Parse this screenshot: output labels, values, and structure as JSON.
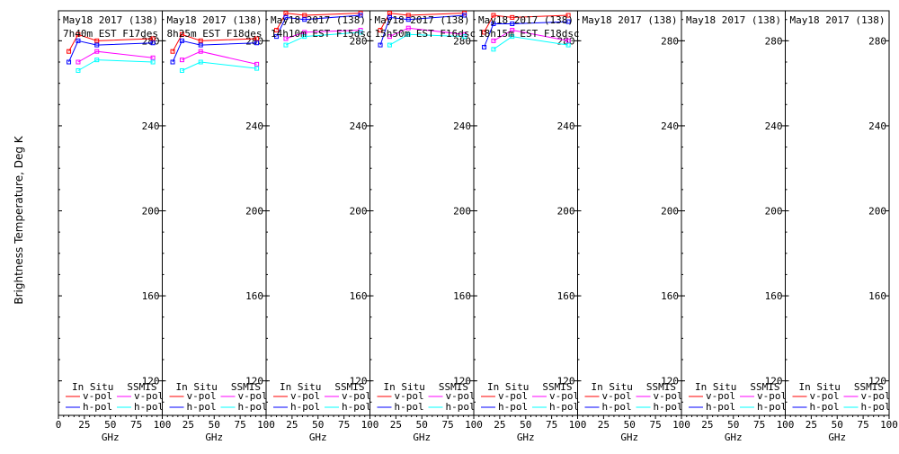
{
  "colors": {
    "insitu_v": "#ff0000",
    "insitu_h": "#0000ff",
    "ssmis_v": "#ff00ff",
    "ssmis_h": "#00ffff",
    "frame": "#000000",
    "background": "#ffffff"
  },
  "ylabel": "Brightness Temperature, Deg K",
  "xlabel": "GHz",
  "legend": {
    "insitu_title": "In Situ",
    "ssmis_title": "SSMIS",
    "vpol": "v-pol",
    "hpol": "h-pol"
  },
  "chart_data": {
    "type": "line",
    "title": "",
    "xlabel": "GHz",
    "ylabel": "Brightness Temperature, Deg K",
    "xlim": [
      0,
      100
    ],
    "ylim": [
      108,
      292
    ],
    "yticks": [
      120,
      160,
      200,
      240,
      280
    ],
    "xticks": [
      0,
      25,
      50,
      75,
      100
    ],
    "xtick_labels": [
      "0",
      "25",
      "50",
      "75",
      "100"
    ],
    "grid": false,
    "panels": [
      {
        "title": "May18 2017 (138)",
        "subtitle": "7h40m EST F17des",
        "series": [
          {
            "name": "In Situ v-pol",
            "x": [
              10,
              19,
              37,
              91
            ],
            "y": [
              275,
              283,
              280,
              281
            ]
          },
          {
            "name": "In Situ h-pol",
            "x": [
              10,
              19,
              37,
              91
            ],
            "y": [
              270,
              280,
              278,
              279
            ]
          },
          {
            "name": "SSMIS v-pol",
            "x": [
              19,
              37,
              91
            ],
            "y": [
              270,
              275,
              272
            ]
          },
          {
            "name": "SSMIS h-pol",
            "x": [
              19,
              37,
              91
            ],
            "y": [
              266,
              271,
              270
            ]
          }
        ]
      },
      {
        "title": "May18 2017 (138)",
        "subtitle": "8h25m EST F18des",
        "series": [
          {
            "name": "In Situ v-pol",
            "x": [
              10,
              19,
              37,
              91
            ],
            "y": [
              275,
              283,
              280,
              281
            ]
          },
          {
            "name": "In Situ h-pol",
            "x": [
              10,
              19,
              37,
              91
            ],
            "y": [
              270,
              280,
              278,
              279
            ]
          },
          {
            "name": "SSMIS v-pol",
            "x": [
              19,
              37,
              91
            ],
            "y": [
              271,
              275,
              269
            ]
          },
          {
            "name": "SSMIS h-pol",
            "x": [
              19,
              37,
              91
            ],
            "y": [
              266,
              270,
              267
            ]
          }
        ]
      },
      {
        "title": "May18 2017 (138)",
        "subtitle": "14h10m EST F15dsc",
        "series": [
          {
            "name": "In Situ v-pol",
            "x": [
              10,
              19,
              37,
              91
            ],
            "y": [
              285,
              293,
              292,
              293
            ]
          },
          {
            "name": "In Situ h-pol",
            "x": [
              10,
              19,
              37,
              91
            ],
            "y": [
              282,
              291,
              290,
              292
            ]
          },
          {
            "name": "SSMIS v-pol",
            "x": [
              19,
              37,
              91
            ],
            "y": [
              281,
              284,
              285
            ]
          },
          {
            "name": "SSMIS h-pol",
            "x": [
              19,
              37,
              91
            ],
            "y": [
              278,
              282,
              284
            ]
          }
        ]
      },
      {
        "title": "May18 2017 (138)",
        "subtitle": "15h50m EST F16dsc",
        "series": [
          {
            "name": "In Situ v-pol",
            "x": [
              10,
              19,
              37,
              91
            ],
            "y": [
              285,
              293,
              292,
              293
            ]
          },
          {
            "name": "In Situ h-pol",
            "x": [
              10,
              19,
              37,
              91
            ],
            "y": [
              278,
              291,
              290,
              292
            ]
          },
          {
            "name": "SSMIS v-pol",
            "x": [
              19,
              37,
              91
            ],
            "y": [
              282,
              286,
              283
            ]
          },
          {
            "name": "SSMIS h-pol",
            "x": [
              19,
              37,
              91
            ],
            "y": [
              278,
              283,
              282
            ]
          }
        ]
      },
      {
        "title": "May18 2017 (138)",
        "subtitle": "18h15m EST F18dsc",
        "series": [
          {
            "name": "In Situ v-pol",
            "x": [
              10,
              19,
              37,
              91
            ],
            "y": [
              284,
              292,
              291,
              292
            ]
          },
          {
            "name": "In Situ h-pol",
            "x": [
              10,
              19,
              37,
              91
            ],
            "y": [
              277,
              288,
              288,
              289
            ]
          },
          {
            "name": "SSMIS v-pol",
            "x": [
              19,
              37,
              91
            ],
            "y": [
              280,
              285,
              280
            ]
          },
          {
            "name": "SSMIS h-pol",
            "x": [
              19,
              37,
              91
            ],
            "y": [
              276,
              282,
              278
            ]
          }
        ]
      },
      {
        "title": "May18 2017 (138)",
        "subtitle": "",
        "series": []
      },
      {
        "title": "May18 2017 (138)",
        "subtitle": "",
        "series": []
      },
      {
        "title": "May18 2017 (138)",
        "subtitle": "",
        "series": []
      }
    ]
  }
}
